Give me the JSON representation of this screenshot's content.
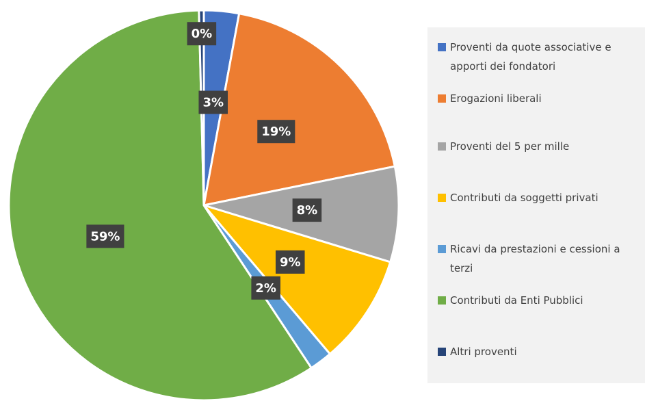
{
  "chart_data": {
    "type": "pie",
    "categories": [
      "Proventi da quote associative e apporti dei fondatori",
      "Erogazioni liberali",
      "Proventi del 5 per mille",
      "Contributi da soggetti privati",
      "Ricavi da prestazioni e cessioni a terzi",
      "Contributi da Enti Pubblici",
      "Altri proventi"
    ],
    "values": [
      2.9,
      18.9,
      7.9,
      9.1,
      1.9,
      58.9,
      0.4
    ],
    "value_labels": [
      "3%",
      "19%",
      "8%",
      "9%",
      "2%",
      "59%",
      "0%"
    ],
    "colors": [
      "#4472c4",
      "#ed7d31",
      "#a5a5a5",
      "#ffc000",
      "#5b9bd5",
      "#70ad47",
      "#264478"
    ],
    "legend": "right"
  }
}
